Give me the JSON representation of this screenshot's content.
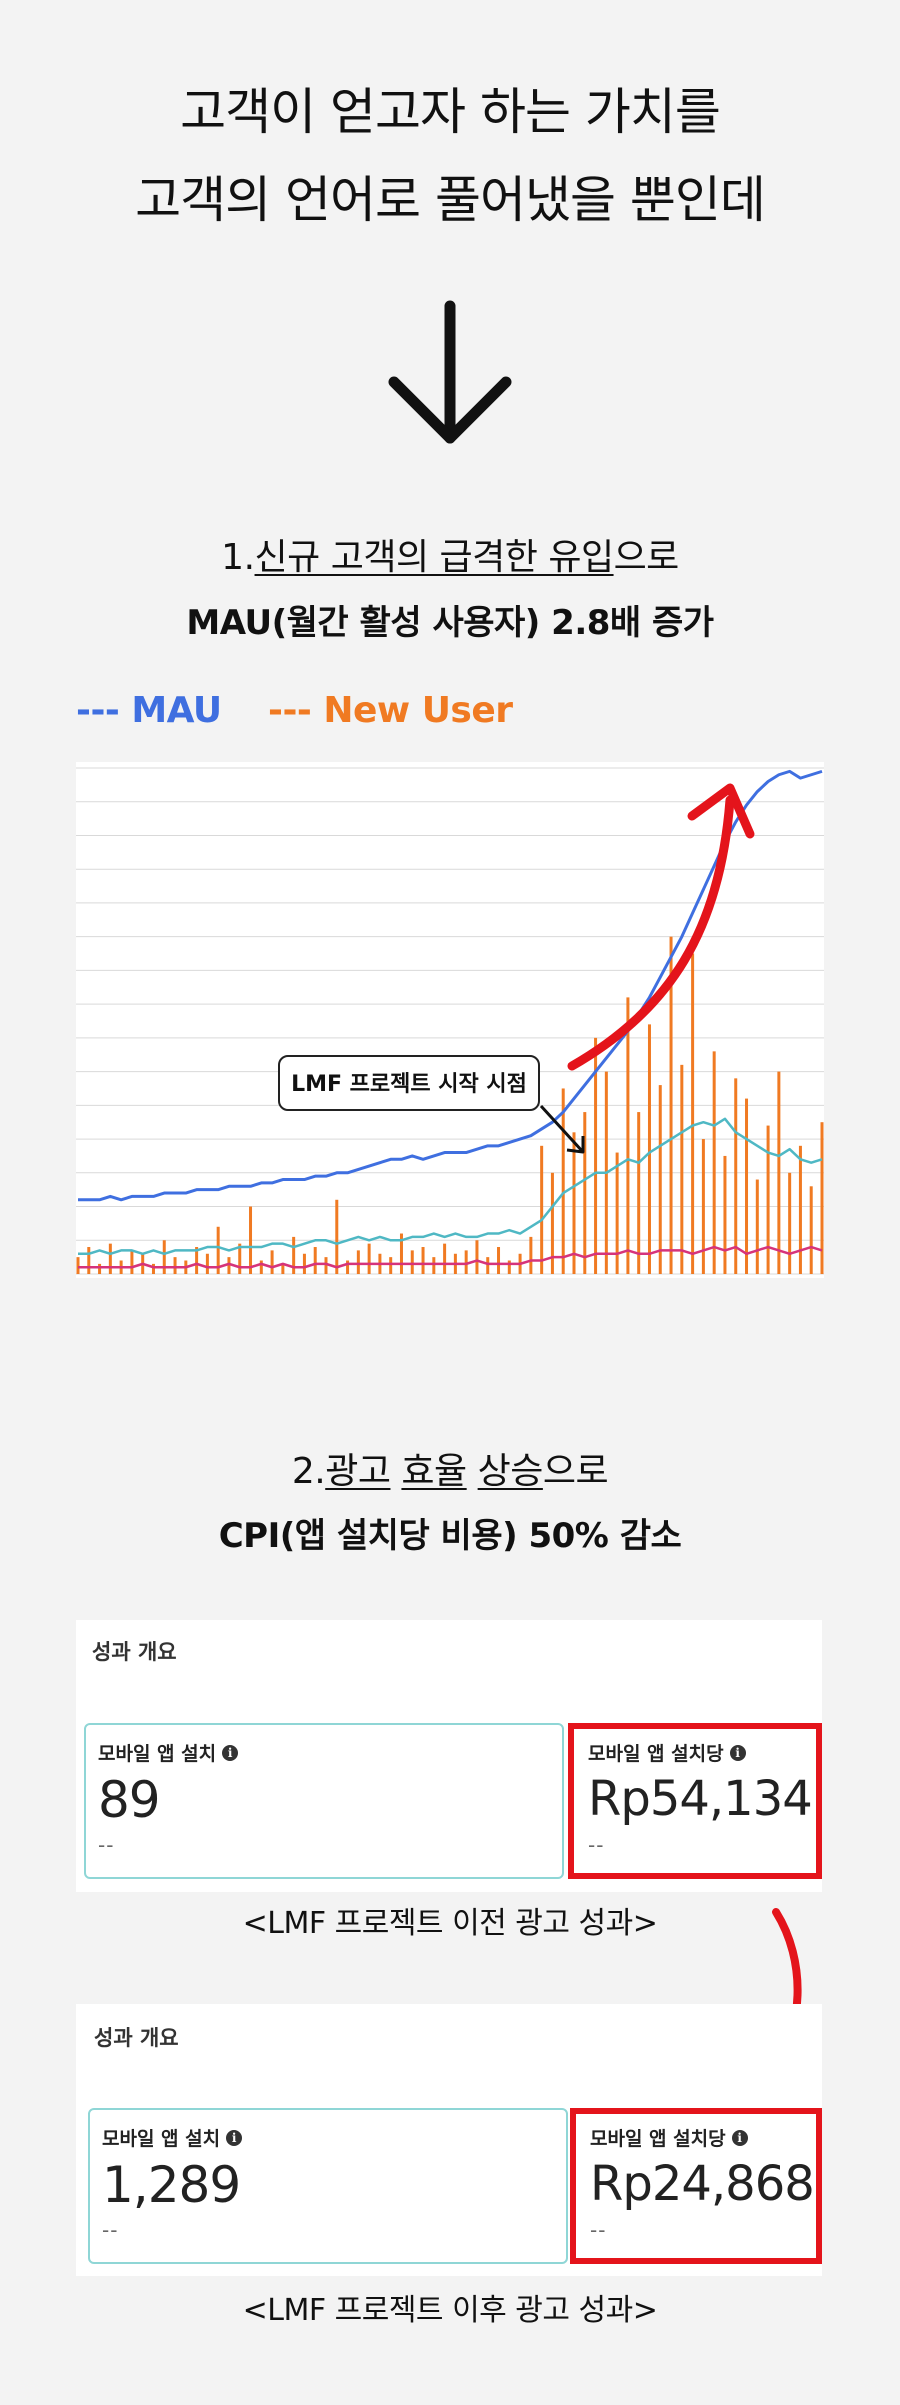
{
  "headline": {
    "line1": "고객이 얻고자 하는 가치를",
    "line2": "고객의 언어로 풀어냈을 뿐인데"
  },
  "section1": {
    "prefix": "1.",
    "underlined1": "신규 고객의 급격한 유입",
    "suffix": "으로",
    "subtitle": "MAU(월간 활성 사용자) 2.8배 증가"
  },
  "legend": {
    "mau": "--- MAU",
    "new_user": "--- New User",
    "mau_color": "#3f6fe0",
    "new_user_color": "#f07a22"
  },
  "chart_callout": "LMF 프로젝트 시작 시점",
  "chart_data": {
    "type": "line",
    "title": "",
    "xlabel": "",
    "ylabel": "",
    "grid": true,
    "series": [
      {
        "name": "MAU",
        "color": "#3f6fe0",
        "values": [
          22,
          22,
          22,
          23,
          22,
          23,
          23,
          23,
          24,
          24,
          24,
          25,
          25,
          25,
          26,
          26,
          26,
          27,
          27,
          28,
          28,
          28,
          29,
          29,
          30,
          30,
          31,
          32,
          33,
          34,
          34,
          35,
          34,
          35,
          36,
          36,
          36,
          37,
          38,
          38,
          39,
          40,
          41,
          43,
          45,
          48,
          52,
          56,
          60,
          64,
          68,
          72,
          77,
          82,
          88,
          94,
          100,
          107,
          114,
          121,
          128,
          134,
          139,
          143,
          146,
          148,
          149,
          147,
          148,
          149
        ]
      },
      {
        "name": "New User",
        "color": "#f07a22",
        "type": "bar",
        "values": [
          5,
          8,
          3,
          9,
          4,
          7,
          6,
          3,
          10,
          5,
          4,
          8,
          6,
          14,
          5,
          9,
          20,
          4,
          7,
          3,
          11,
          6,
          8,
          5,
          22,
          4,
          7,
          9,
          6,
          5,
          12,
          7,
          8,
          5,
          9,
          6,
          7,
          10,
          5,
          8,
          4,
          6,
          11,
          38,
          30,
          55,
          42,
          48,
          70,
          60,
          36,
          82,
          48,
          74,
          56,
          100,
          62,
          95,
          40,
          66,
          35,
          58,
          52,
          28,
          44,
          60,
          30,
          38,
          26,
          45
        ]
      },
      {
        "color": "#4fb8c4",
        "values": [
          6,
          6,
          7,
          6,
          7,
          7,
          6,
          7,
          6,
          7,
          7,
          7,
          8,
          8,
          7,
          8,
          8,
          8,
          9,
          9,
          8,
          9,
          10,
          10,
          9,
          10,
          11,
          10,
          11,
          10,
          10,
          11,
          11,
          12,
          11,
          12,
          11,
          11,
          12,
          12,
          13,
          12,
          14,
          16,
          20,
          24,
          26,
          28,
          30,
          30,
          32,
          34,
          33,
          36,
          38,
          40,
          42,
          44,
          45,
          44,
          46,
          42,
          40,
          38,
          36,
          35,
          37,
          34,
          33,
          34
        ]
      },
      {
        "color": "#d6337a",
        "values": [
          2,
          2,
          2,
          2,
          2,
          2,
          3,
          2,
          2,
          2,
          2,
          3,
          2,
          2,
          3,
          2,
          2,
          3,
          2,
          3,
          2,
          2,
          3,
          3,
          2,
          3,
          3,
          3,
          3,
          3,
          3,
          3,
          3,
          3,
          3,
          3,
          3,
          4,
          3,
          3,
          3,
          3,
          4,
          4,
          5,
          5,
          6,
          5,
          6,
          6,
          6,
          7,
          6,
          6,
          7,
          7,
          7,
          6,
          7,
          8,
          7,
          8,
          6,
          7,
          8,
          7,
          6,
          7,
          8,
          7
        ]
      }
    ]
  },
  "section2": {
    "prefix": "2.",
    "underlined1": "광고",
    "underlined2": "효율",
    "underlined3": "상승",
    "suffix": "으로",
    "subtitle": "CPI(앱 설치당 비용) 50% 감소"
  },
  "panel_before": {
    "title": "성과 개요",
    "installs_label": "모바일 앱 설치",
    "installs_value": "89",
    "installs_dash": "--",
    "cpi_label": "모바일 앱 설치당",
    "cpi_value": "Rp54,134",
    "cpi_dash": "--",
    "info": "i",
    "caption": "<LMF 프로젝트 이전 광고 성과>"
  },
  "panel_after": {
    "title": "성과 개요",
    "installs_label": "모바일 앱 설치",
    "installs_value": "1,289",
    "installs_dash": "--",
    "cpi_label": "모바일 앱 설치당",
    "cpi_value": "Rp24,868",
    "cpi_dash": "--",
    "info": "i",
    "caption": "<LMF 프로젝트 이후 광고 성과>"
  }
}
